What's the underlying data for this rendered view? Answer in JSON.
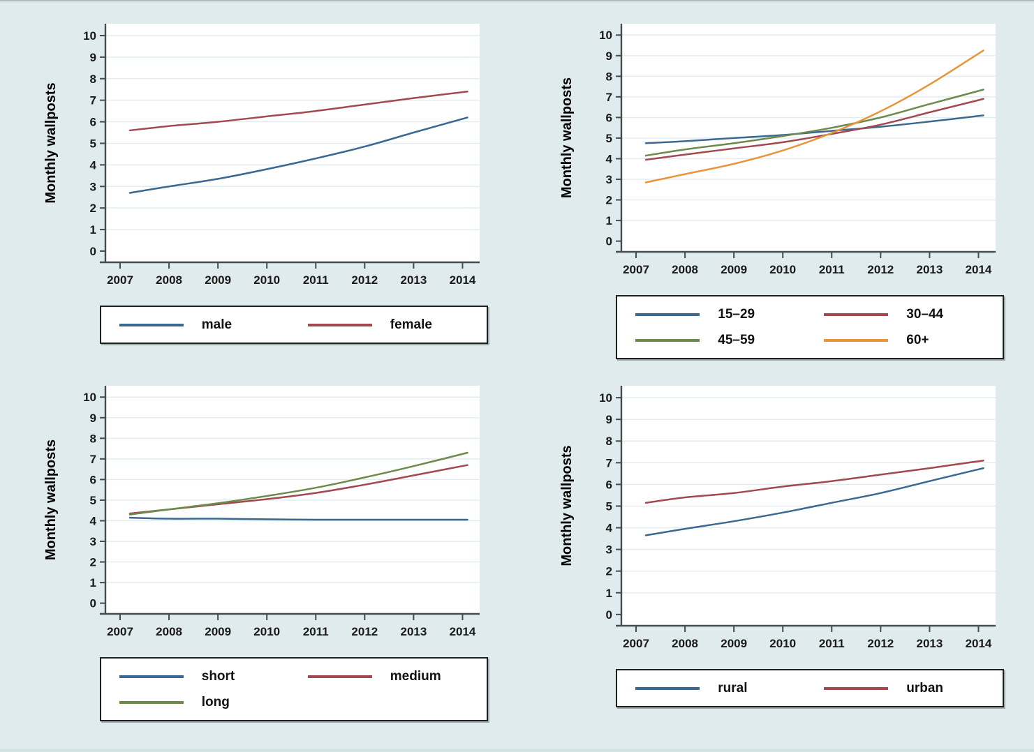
{
  "figure": {
    "background": "#dfebec",
    "plot_background": "#ffffff",
    "grid_color": "#e2ecef",
    "axis_color": "#414d52",
    "tick_label_color": "#1a1a1a",
    "legend_border_color": "#202020",
    "ylabel": "Monthly wallposts"
  },
  "chart_data": [
    {
      "name": "monthly-wallposts-by-gender",
      "type": "line",
      "title": "",
      "xlabel": "",
      "ylabel": "Monthly wallposts",
      "xlim": [
        2006.7,
        2014.35
      ],
      "ylim": [
        -0.52,
        10.55
      ],
      "x_ticks": [
        2007,
        2008,
        2009,
        2010,
        2011,
        2012,
        2013,
        2014
      ],
      "y_ticks": [
        0,
        1,
        2,
        3,
        4,
        5,
        6,
        7,
        8,
        9,
        10
      ],
      "grid": "horizontal",
      "legend_position": "below",
      "legend_columns": 2,
      "x": [
        2007.2,
        2008,
        2009,
        2010,
        2011,
        2012,
        2013,
        2014.1
      ],
      "series": [
        {
          "name": "male",
          "color": "#3a6890",
          "values": [
            2.7,
            3.0,
            3.35,
            3.8,
            4.3,
            4.85,
            5.5,
            6.2
          ]
        },
        {
          "name": "female",
          "color": "#a2494f",
          "values": [
            5.6,
            5.8,
            6.0,
            6.25,
            6.5,
            6.8,
            7.1,
            7.4
          ]
        }
      ]
    },
    {
      "name": "monthly-wallposts-by-age-group",
      "type": "line",
      "title": "",
      "xlabel": "",
      "ylabel": "Monthly wallposts",
      "xlim": [
        2006.7,
        2014.35
      ],
      "ylim": [
        -0.52,
        10.55
      ],
      "x_ticks": [
        2007,
        2008,
        2009,
        2010,
        2011,
        2012,
        2013,
        2014
      ],
      "y_ticks": [
        0,
        1,
        2,
        3,
        4,
        5,
        6,
        7,
        8,
        9,
        10
      ],
      "grid": "horizontal",
      "legend_position": "below",
      "legend_columns": 2,
      "x": [
        2007.2,
        2008,
        2009,
        2010,
        2011,
        2012,
        2013,
        2014.1
      ],
      "series": [
        {
          "name": "15–29",
          "color": "#3a6890",
          "values": [
            4.75,
            4.85,
            5.0,
            5.15,
            5.35,
            5.55,
            5.8,
            6.1
          ]
        },
        {
          "name": "30–44",
          "color": "#a2494f",
          "values": [
            3.95,
            4.2,
            4.5,
            4.8,
            5.2,
            5.65,
            6.25,
            6.9
          ]
        },
        {
          "name": "45–59",
          "color": "#6c8a4c",
          "values": [
            4.15,
            4.45,
            4.75,
            5.1,
            5.5,
            6.0,
            6.65,
            7.35
          ]
        },
        {
          "name": "60+",
          "color": "#e8953a",
          "values": [
            2.85,
            3.25,
            3.75,
            4.4,
            5.25,
            6.3,
            7.6,
            9.25
          ]
        }
      ]
    },
    {
      "name": "monthly-wallposts-by-membership-length",
      "type": "line",
      "title": "",
      "xlabel": "",
      "ylabel": "Monthly wallposts",
      "xlim": [
        2006.7,
        2014.35
      ],
      "ylim": [
        -0.52,
        10.55
      ],
      "x_ticks": [
        2007,
        2008,
        2009,
        2010,
        2011,
        2012,
        2013,
        2014
      ],
      "y_ticks": [
        0,
        1,
        2,
        3,
        4,
        5,
        6,
        7,
        8,
        9,
        10
      ],
      "grid": "horizontal",
      "legend_position": "below",
      "legend_columns": 2,
      "x": [
        2007.2,
        2008,
        2009,
        2010,
        2011,
        2012,
        2013,
        2014.1
      ],
      "series": [
        {
          "name": "short",
          "color": "#3a6890",
          "values": [
            4.15,
            4.1,
            4.1,
            4.07,
            4.05,
            4.05,
            4.05,
            4.05
          ]
        },
        {
          "name": "medium",
          "color": "#a2494f",
          "values": [
            4.35,
            4.55,
            4.8,
            5.05,
            5.35,
            5.75,
            6.2,
            6.7
          ]
        },
        {
          "name": "long",
          "color": "#6c8a4c",
          "values": [
            4.3,
            4.55,
            4.85,
            5.2,
            5.6,
            6.1,
            6.65,
            7.3
          ]
        }
      ]
    },
    {
      "name": "monthly-wallposts-by-residence",
      "type": "line",
      "title": "",
      "xlabel": "",
      "ylabel": "Monthly wallposts",
      "xlim": [
        2006.7,
        2014.35
      ],
      "ylim": [
        -0.52,
        10.55
      ],
      "x_ticks": [
        2007,
        2008,
        2009,
        2010,
        2011,
        2012,
        2013,
        2014
      ],
      "y_ticks": [
        0,
        1,
        2,
        3,
        4,
        5,
        6,
        7,
        8,
        9,
        10
      ],
      "grid": "horizontal",
      "legend_position": "below",
      "legend_columns": 2,
      "x": [
        2007.2,
        2008,
        2009,
        2010,
        2011,
        2012,
        2013,
        2014.1
      ],
      "series": [
        {
          "name": "rural",
          "color": "#3a6890",
          "values": [
            3.65,
            3.95,
            4.3,
            4.7,
            5.15,
            5.6,
            6.15,
            6.75
          ]
        },
        {
          "name": "urban",
          "color": "#a2494f",
          "values": [
            5.15,
            5.4,
            5.6,
            5.9,
            6.15,
            6.45,
            6.75,
            7.1
          ]
        }
      ]
    }
  ]
}
